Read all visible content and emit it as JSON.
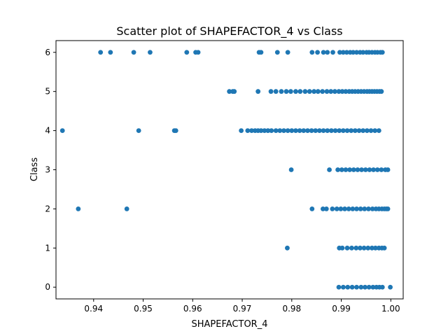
{
  "chart_data": {
    "type": "scatter",
    "title": "Scatter plot of SHAPEFACTOR_4 vs Class",
    "xlabel": "SHAPEFACTOR_4",
    "ylabel": "Class",
    "xlim": [
      0.9324,
      1.0025
    ],
    "ylim": [
      -0.3,
      6.3
    ],
    "xticks": [
      0.94,
      0.95,
      0.96,
      0.97,
      0.98,
      0.99,
      1.0
    ],
    "xtick_labels": [
      "0.94",
      "0.95",
      "0.96",
      "0.97",
      "0.98",
      "0.99",
      "1.00"
    ],
    "yticks": [
      0,
      1,
      2,
      3,
      4,
      5,
      6
    ],
    "ytick_labels": [
      "0",
      "1",
      "2",
      "3",
      "4",
      "5",
      "6"
    ],
    "grid": false,
    "marker_color": "#1f77b4",
    "points": {
      "6": [
        0.9414,
        0.9434,
        0.9481,
        0.9514,
        0.9588,
        0.9606,
        0.9611,
        0.9734,
        0.9738,
        0.9771,
        0.9792,
        0.9841,
        0.9852,
        0.9864,
        0.9872,
        0.9883,
        0.9897,
        0.9904,
        0.9911,
        0.9918,
        0.9924,
        0.9931,
        0.9938,
        0.9944,
        0.9951,
        0.9956,
        0.9962,
        0.9968,
        0.9973,
        0.9979,
        0.9983
      ],
      "5": [
        0.9674,
        0.9681,
        0.9684,
        0.9732,
        0.9758,
        0.9768,
        0.9779,
        0.9789,
        0.9798,
        0.9808,
        0.9817,
        0.9827,
        0.9836,
        0.9845,
        0.9853,
        0.9862,
        0.9871,
        0.9879,
        0.9887,
        0.9895,
        0.9902,
        0.9909,
        0.9916,
        0.9922,
        0.9928,
        0.9934,
        0.994,
        0.9946,
        0.9952,
        0.9957,
        0.9962,
        0.9967,
        0.9972,
        0.9977,
        0.9981
      ],
      "4": [
        0.9337,
        0.9491,
        0.9563,
        0.9566,
        0.9698,
        0.9711,
        0.9719,
        0.9726,
        0.9732,
        0.9738,
        0.9745,
        0.9752,
        0.9759,
        0.9768,
        0.9776,
        0.9784,
        0.9792,
        0.98,
        0.9808,
        0.9816,
        0.9824,
        0.9832,
        0.984,
        0.9848,
        0.9856,
        0.9864,
        0.9872,
        0.988,
        0.9888,
        0.9896,
        0.9904,
        0.9912,
        0.992,
        0.9928,
        0.9936,
        0.9944,
        0.9952,
        0.996,
        0.9968,
        0.9976
      ],
      "3": [
        0.9799,
        0.9876,
        0.9893,
        0.9901,
        0.9909,
        0.9917,
        0.9925,
        0.9933,
        0.9941,
        0.9949,
        0.9957,
        0.9965,
        0.9973,
        0.9981,
        0.9989,
        0.9994
      ],
      "2": [
        0.9369,
        0.9467,
        0.9841,
        0.9863,
        0.987,
        0.9882,
        0.9891,
        0.9899,
        0.9907,
        0.9915,
        0.9923,
        0.9931,
        0.9939,
        0.9947,
        0.9955,
        0.9963,
        0.997,
        0.9976,
        0.9982,
        0.9987,
        0.9991,
        0.9994
      ],
      "1": [
        0.9791,
        0.9896,
        0.9902,
        0.9912,
        0.9921,
        0.993,
        0.9938,
        0.9946,
        0.9954,
        0.9962,
        0.9969,
        0.9976,
        0.9982,
        0.9987
      ],
      "0": [
        0.9895,
        0.9904,
        0.9913,
        0.9922,
        0.9931,
        0.994,
        0.9948,
        0.9956,
        0.9964,
        0.9971,
        0.9977,
        0.9983,
        0.9999
      ]
    }
  }
}
